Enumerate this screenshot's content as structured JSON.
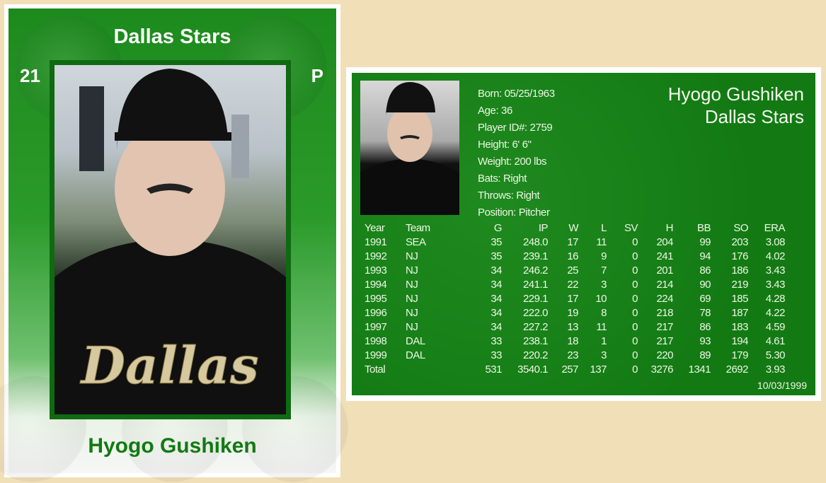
{
  "front": {
    "team": "Dallas Stars",
    "number": "21",
    "position_abbr": "P",
    "player_name": "Hyogo Gushiken",
    "jersey_text": "Dallas"
  },
  "back": {
    "player_name": "Hyogo Gushiken",
    "team": "Dallas Stars",
    "info": [
      "Born: 05/25/1963",
      "Age: 36",
      "Player ID#: 2759",
      "Height: 6' 6\"",
      "Weight: 200 lbs",
      "Bats: Right",
      "Throws: Right",
      "Position: Pitcher"
    ],
    "stats": {
      "headers": [
        "Year",
        "Team",
        "G",
        "IP",
        "W",
        "L",
        "SV",
        "H",
        "BB",
        "SO",
        "ERA"
      ],
      "rows": [
        [
          "1991",
          "SEA",
          "35",
          "248.0",
          "17",
          "11",
          "0",
          "204",
          "99",
          "203",
          "3.08"
        ],
        [
          "1992",
          "NJ",
          "35",
          "239.1",
          "16",
          "9",
          "0",
          "241",
          "94",
          "176",
          "4.02"
        ],
        [
          "1993",
          "NJ",
          "34",
          "246.2",
          "25",
          "7",
          "0",
          "201",
          "86",
          "186",
          "3.43"
        ],
        [
          "1994",
          "NJ",
          "34",
          "241.1",
          "22",
          "3",
          "0",
          "214",
          "90",
          "219",
          "3.43"
        ],
        [
          "1995",
          "NJ",
          "34",
          "229.1",
          "17",
          "10",
          "0",
          "224",
          "69",
          "185",
          "4.28"
        ],
        [
          "1996",
          "NJ",
          "34",
          "222.0",
          "19",
          "8",
          "0",
          "218",
          "78",
          "187",
          "4.22"
        ],
        [
          "1997",
          "NJ",
          "34",
          "227.2",
          "13",
          "11",
          "0",
          "217",
          "86",
          "183",
          "4.59"
        ],
        [
          "1998",
          "DAL",
          "33",
          "238.1",
          "18",
          "1",
          "0",
          "217",
          "93",
          "194",
          "4.61"
        ],
        [
          "1999",
          "DAL",
          "33",
          "220.2",
          "23",
          "3",
          "0",
          "220",
          "89",
          "179",
          "5.30"
        ],
        [
          "Total",
          "",
          "531",
          "3540.1",
          "257",
          "137",
          "0",
          "3276",
          "1341",
          "2692",
          "3.93"
        ]
      ]
    },
    "date": "10/03/1999"
  },
  "colors": {
    "card_green": "#1d8a1d",
    "name_green": "#117a11",
    "frame_green": "#0f6a12",
    "background": "#f1dfb8"
  }
}
